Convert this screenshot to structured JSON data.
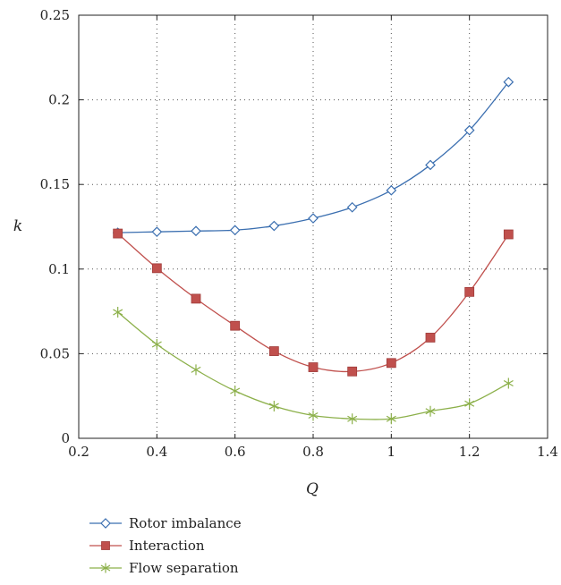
{
  "chart_data": {
    "type": "line",
    "xlabel": "Q",
    "ylabel": "k",
    "xlim": [
      0.2,
      1.4
    ],
    "ylim": [
      0,
      0.25
    ],
    "xticks": [
      "0.2",
      "0.4",
      "0.6",
      "0.8",
      "1",
      "1.2",
      "1.4"
    ],
    "yticks": [
      "0",
      "0.05",
      "0.1",
      "0.15",
      "0.2",
      "0.25"
    ],
    "grid": "dotted",
    "legend_position": "bottom-left",
    "x": [
      0.3,
      0.4,
      0.5,
      0.6,
      0.7,
      0.8,
      0.9,
      1.0,
      1.1,
      1.2,
      1.3
    ],
    "series": [
      {
        "name": "Rotor imbalance",
        "color": "#3b6fb0",
        "marker": "diamond-open",
        "values": [
          0.1215,
          0.122,
          0.1225,
          0.123,
          0.1255,
          0.13,
          0.1365,
          0.1465,
          0.1615,
          0.182,
          0.2105
        ]
      },
      {
        "name": "Interaction",
        "color": "#c0504d",
        "marker": "square-filled",
        "values": [
          0.121,
          0.1005,
          0.0825,
          0.0665,
          0.0515,
          0.042,
          0.0395,
          0.0445,
          0.0595,
          0.0865,
          0.1205
        ]
      },
      {
        "name": "Flow separation",
        "color": "#8cb04a",
        "marker": "asterisk",
        "values": [
          0.0745,
          0.0555,
          0.0405,
          0.028,
          0.019,
          0.0135,
          0.0115,
          0.0115,
          0.016,
          0.0205,
          0.0325
        ]
      }
    ]
  }
}
